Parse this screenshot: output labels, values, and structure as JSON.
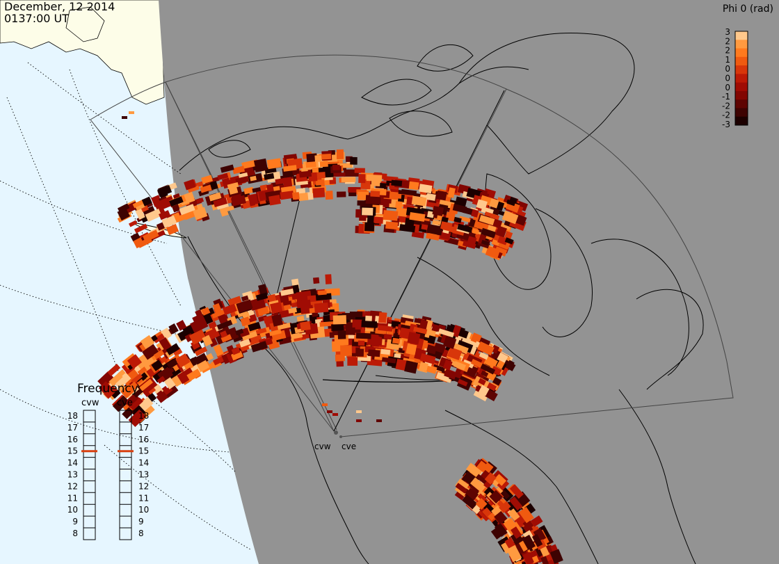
{
  "header": {
    "date": "December, 12 2014",
    "time": "0137:00 UT"
  },
  "colorbar": {
    "title": "Phi 0 (rad)",
    "tick_labels": [
      "3",
      "2",
      "2",
      "1",
      "0",
      "0",
      "0",
      "-1",
      "-2",
      "-2",
      "-3"
    ],
    "colors": [
      "#ffc88c",
      "#ff9a40",
      "#ff7a1e",
      "#f05a10",
      "#d8360a",
      "#bc1a06",
      "#a00c04",
      "#820602",
      "#5e0402",
      "#3e0302",
      "#1c0000"
    ]
  },
  "frequency_panel": {
    "title": "Frequency",
    "radars": [
      {
        "name": "cvw",
        "selected_mhz": 15
      },
      {
        "name": "cve",
        "selected_mhz": 15
      }
    ],
    "scale": [
      "18",
      "17",
      "16",
      "15",
      "14",
      "13",
      "12",
      "11",
      "10",
      "9",
      "8"
    ],
    "marker_color": "#d84010"
  },
  "radar_sites": [
    {
      "code": "cvw"
    },
    {
      "code": "cve"
    }
  ],
  "map_colors": {
    "night_side": "#939393",
    "day_ocean": "#e6f6ff",
    "day_land": "#fdfde8",
    "land_highlight": "#fffff0"
  }
}
